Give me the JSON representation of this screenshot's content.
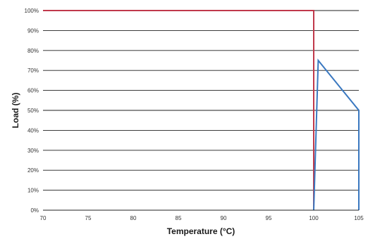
{
  "chart_data": {
    "type": "line",
    "xlabel": "Temperature (°C)",
    "ylabel": "Load (%)",
    "xlim": [
      70,
      105
    ],
    "ylim": [
      0,
      100
    ],
    "x_ticks": [
      70,
      75,
      80,
      85,
      90,
      95,
      100,
      105
    ],
    "x_tick_labels": [
      "70",
      "75",
      "80",
      "85",
      "90",
      "95",
      "100",
      "105"
    ],
    "y_ticks": [
      0,
      10,
      20,
      30,
      40,
      50,
      60,
      70,
      80,
      90,
      100
    ],
    "y_tick_labels": [
      "0%",
      "10%",
      "20%",
      "30%",
      "40%",
      "50%",
      "60%",
      "70%",
      "80%",
      "90%",
      "100%"
    ],
    "grid": "horizontal",
    "legend": "none",
    "series": [
      {
        "color": "#c0394b",
        "x": [
          70,
          100,
          100
        ],
        "y": [
          100,
          100,
          0
        ]
      },
      {
        "color": "#3a78c0",
        "x": [
          100,
          100.5,
          105,
          105
        ],
        "y": [
          0,
          75,
          50,
          0
        ]
      }
    ]
  }
}
